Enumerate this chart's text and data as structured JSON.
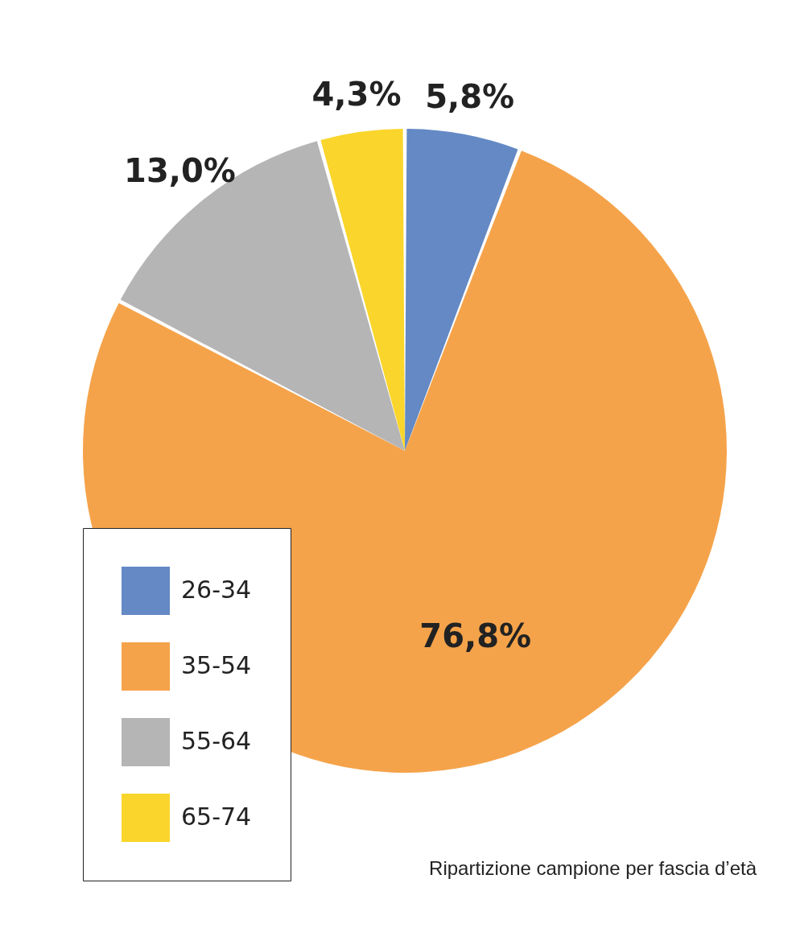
{
  "chart_data": {
    "type": "pie",
    "categories": [
      "26-34",
      "35-54",
      "55-64",
      "65-74"
    ],
    "values": [
      5.8,
      76.8,
      13.0,
      4.3
    ],
    "colors": [
      "#6489c4",
      "#f5a34a",
      "#b5b5b5",
      "#fad52b"
    ],
    "value_labels": [
      "5,8%",
      "76,8%",
      "13,0%",
      "4,3%"
    ],
    "legend": "bottom left",
    "annotations": [
      "Ripartizione campione per fascia d’età"
    ]
  }
}
